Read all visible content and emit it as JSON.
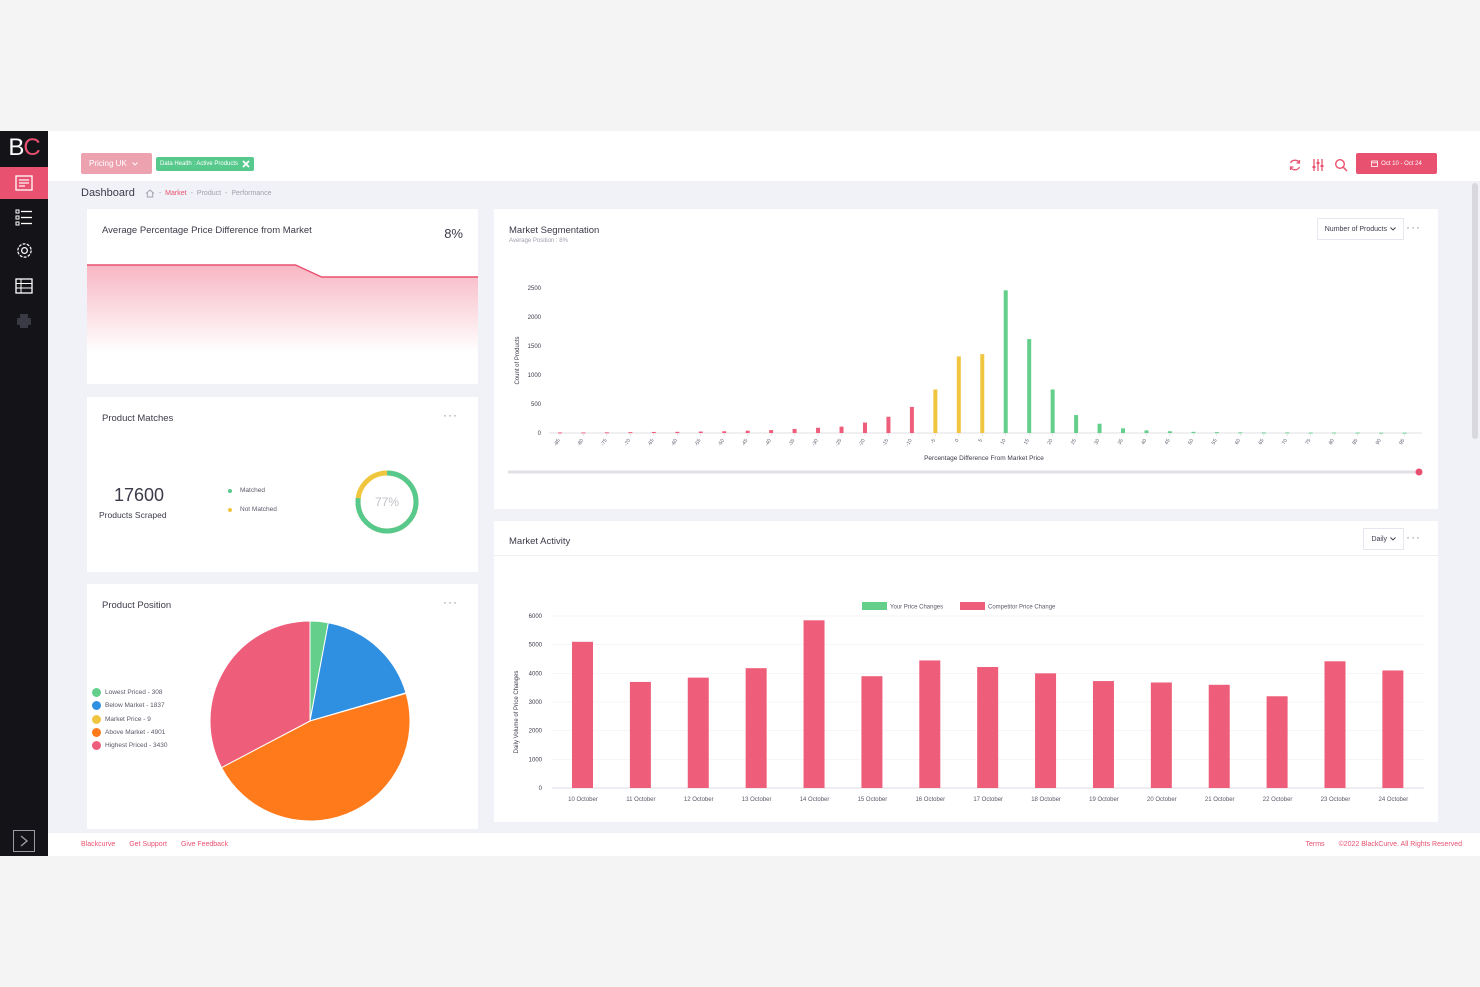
{
  "logo": {
    "b": "B",
    "c": "C"
  },
  "sidebar": {
    "items": [
      {
        "name": "dashboard-icon",
        "active": true
      },
      {
        "name": "list-icon",
        "active": false
      },
      {
        "name": "gear-icon",
        "active": false
      },
      {
        "name": "table-icon",
        "active": false
      },
      {
        "name": "printer-icon",
        "active": false
      }
    ]
  },
  "topbar": {
    "pricing_chip": "Pricing UK",
    "health_chip": "Data Health : Active Products",
    "date_range": "Oct 10 - Oct 24"
  },
  "breadcrumb": {
    "title": "Dashboard",
    "sep": "-",
    "items": [
      "Market",
      "Product",
      "Performance"
    ]
  },
  "avg_price": {
    "title": "Average Percentage Price Difference from Market",
    "value": "8%"
  },
  "product_matches": {
    "title": "Product Matches",
    "count": "17600",
    "count_label": "Products Scraped",
    "legend": [
      "Matched",
      "Not Matched"
    ],
    "percent": "77%",
    "matched_fraction": 0.77
  },
  "product_position": {
    "title": "Product Position",
    "legend": [
      {
        "label": "Lowest Priced - 308",
        "color": "#63cf8b"
      },
      {
        "label": "Below Market - 1837",
        "color": "#2f8fe0"
      },
      {
        "label": "Market Price - 9",
        "color": "#f0c63f"
      },
      {
        "label": "Above Market - 4901",
        "color": "#ff7a1a"
      },
      {
        "label": "Highest Priced - 3430",
        "color": "#ee5d79"
      }
    ]
  },
  "segmentation": {
    "title": "Market Segmentation",
    "subtitle": "Average Position : 8%",
    "dropdown": "Number of Products",
    "dots": "···"
  },
  "activity": {
    "title": "Market Activity",
    "dropdown": "Daily",
    "dots": "···"
  },
  "card_dots": "···",
  "footer": {
    "left": [
      "Blackcurve",
      "Get Support",
      "Give Feedback"
    ],
    "right": [
      "Terms",
      "©2022 BlackCurve. All Rights Reserved"
    ]
  },
  "chart_data": [
    {
      "type": "line",
      "title": "Average Percentage Price Difference from Market",
      "values": [
        10,
        10,
        10,
        10,
        10,
        10,
        10,
        10,
        10,
        10,
        10,
        10,
        10,
        10,
        10,
        10,
        10,
        9,
        8,
        8,
        8,
        8,
        8,
        8,
        8,
        8,
        8,
        8,
        8,
        8,
        8
      ]
    },
    {
      "type": "bar",
      "title": "Market Segmentation",
      "xlabel": "Percentage Difference From Market Price",
      "ylabel": "Count of Products",
      "ylim": [
        0,
        2500
      ],
      "yticks": [
        0,
        500,
        1000,
        1500,
        2000,
        2500
      ],
      "categories": [
        "-85",
        "-80",
        "-75",
        "-70",
        "-65",
        "-60",
        "-55",
        "-50",
        "-45",
        "-40",
        "-35",
        "-30",
        "-25",
        "-20",
        "-15",
        "-10",
        "-5",
        "0",
        "5",
        "10",
        "15",
        "20",
        "25",
        "30",
        "35",
        "40",
        "45",
        "50",
        "55",
        "60",
        "65",
        "70",
        "75",
        "80",
        "85",
        "90",
        "95"
      ],
      "values": [
        10,
        10,
        12,
        15,
        18,
        20,
        25,
        30,
        40,
        50,
        70,
        90,
        110,
        180,
        280,
        450,
        750,
        1320,
        1360,
        2460,
        1620,
        750,
        310,
        160,
        80,
        45,
        30,
        20,
        15,
        12,
        10,
        10,
        8,
        8,
        8,
        6,
        6
      ],
      "colors": [
        "#ee5d79",
        "#ee5d79",
        "#ee5d79",
        "#ee5d79",
        "#ee5d79",
        "#ee5d79",
        "#ee5d79",
        "#ee5d79",
        "#ee5d79",
        "#ee5d79",
        "#ee5d79",
        "#ee5d79",
        "#ee5d79",
        "#ee5d79",
        "#ee5d79",
        "#ee5d79",
        "#f0c63f",
        "#f0c63f",
        "#f0c63f",
        "#63cf8b",
        "#63cf8b",
        "#63cf8b",
        "#63cf8b",
        "#63cf8b",
        "#63cf8b",
        "#63cf8b",
        "#63cf8b",
        "#63cf8b",
        "#63cf8b",
        "#63cf8b",
        "#63cf8b",
        "#63cf8b",
        "#63cf8b",
        "#63cf8b",
        "#63cf8b",
        "#63cf8b",
        "#63cf8b"
      ]
    },
    {
      "type": "bar",
      "title": "Market Activity",
      "ylabel": "Daily Volume of Price Changes",
      "ylim": [
        0,
        6000
      ],
      "yticks": [
        0,
        1000,
        2000,
        3000,
        4000,
        5000,
        6000
      ],
      "categories": [
        "10 October",
        "11 October",
        "12 October",
        "13 October",
        "14 October",
        "15 October",
        "16 October",
        "17 October",
        "18 October",
        "19 October",
        "20 October",
        "21 October",
        "22 October",
        "23 October",
        "24 October"
      ],
      "series": [
        {
          "name": "Your Price Changes",
          "color": "#63cf8b",
          "values": [
            0,
            0,
            0,
            0,
            0,
            0,
            0,
            0,
            0,
            0,
            0,
            0,
            0,
            0,
            0
          ]
        },
        {
          "name": "Competitor Price Change",
          "color": "#ee5d79",
          "values": [
            5100,
            3700,
            3850,
            4180,
            5850,
            3900,
            4450,
            4220,
            4000,
            3730,
            3680,
            3600,
            3200,
            4420,
            4100
          ]
        }
      ],
      "legend": "top-center"
    },
    {
      "type": "pie",
      "title": "Product Position",
      "labels": [
        "Lowest Priced",
        "Below Market",
        "Market Price",
        "Above Market",
        "Highest Priced"
      ],
      "values": [
        308,
        1837,
        9,
        4901,
        3430
      ],
      "colors": [
        "#63cf8b",
        "#2f8fe0",
        "#f0c63f",
        "#ff7a1a",
        "#ee5d79"
      ]
    }
  ]
}
